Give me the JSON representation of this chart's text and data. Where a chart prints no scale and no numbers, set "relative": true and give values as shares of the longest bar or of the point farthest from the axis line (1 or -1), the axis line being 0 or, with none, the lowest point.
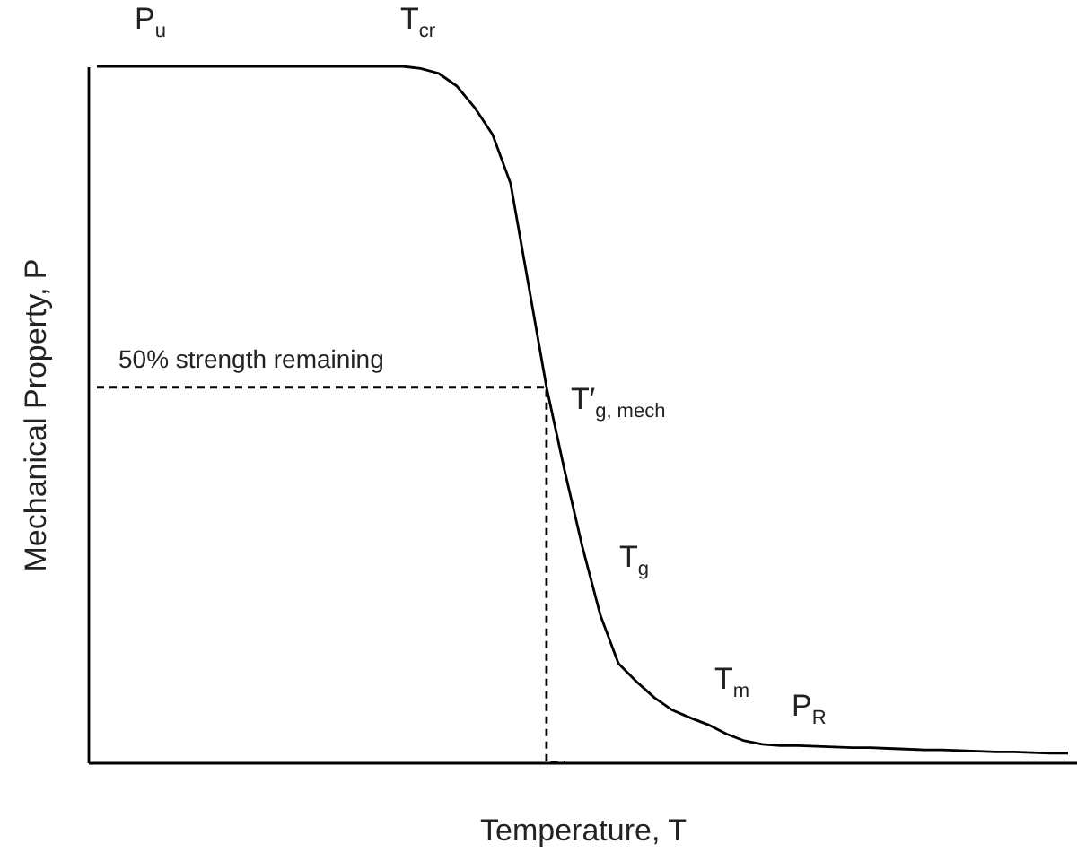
{
  "chart_data": {
    "type": "line",
    "relative": true,
    "xlabel": "Temperature, T",
    "ylabel": "Mechanical Property, P",
    "tick_labels": false,
    "marker": "none",
    "categories": [
      null,
      null,
      null,
      null,
      null,
      null,
      null,
      null,
      null,
      null,
      null,
      null,
      null,
      null,
      null,
      null,
      null,
      null,
      null,
      null,
      null,
      null,
      null,
      null,
      null,
      null,
      null,
      null,
      null,
      null,
      null,
      null,
      null,
      null,
      null,
      null,
      null,
      null,
      null,
      null,
      null,
      null,
      null,
      null,
      null,
      null,
      null,
      null,
      null,
      null,
      null,
      null,
      null,
      null,
      null
    ],
    "series": [
      {
        "color": "#000000",
        "line_style": "solid",
        "values": [
          1,
          1,
          1,
          1,
          1,
          1,
          1,
          1,
          1,
          1,
          1,
          1,
          1,
          1,
          1,
          1,
          1,
          1,
          0.997,
          0.99,
          0.972,
          0.941,
          0.902,
          0.832,
          0.686,
          0.539,
          0.42,
          0.309,
          0.211,
          0.142,
          0.116,
          0.093,
          0.075,
          0.064,
          0.054,
          0.041,
          0.031,
          0.026,
          0.024,
          0.024,
          0.023,
          0.022,
          0.021,
          0.021,
          0.02,
          0.019,
          0.018,
          0.018,
          0.017,
          0.016,
          0.015,
          0.015,
          0.014,
          0.013,
          0.013
        ]
      },
      {
        "type": "step",
        "color": "#000000",
        "line_style": "dashed",
        "values": [
          0.539,
          0.539,
          0.539,
          0.539,
          0.539,
          0.539,
          0.539,
          0.539,
          0.539,
          0.539,
          0.539,
          0.539,
          0.539,
          0.539,
          0.539,
          0.539,
          0.539,
          0.539,
          0.539,
          0.539,
          0.539,
          0.539,
          0.539,
          0.539,
          0.539,
          0.539,
          0,
          null,
          null,
          null,
          null,
          null,
          null,
          null,
          null,
          null,
          null,
          null,
          null,
          null,
          null,
          null,
          null,
          null,
          null,
          null,
          null,
          null,
          null,
          null,
          null,
          null,
          null,
          null,
          null
        ]
      }
    ],
    "annotations": [
      "P$_{u}$",
      "T$_{cr}$",
      "50% strength remaining",
      "T′$_{g, mech}$",
      "T$_{g}$",
      "T$_{m}$",
      "P$_{R}$"
    ]
  }
}
